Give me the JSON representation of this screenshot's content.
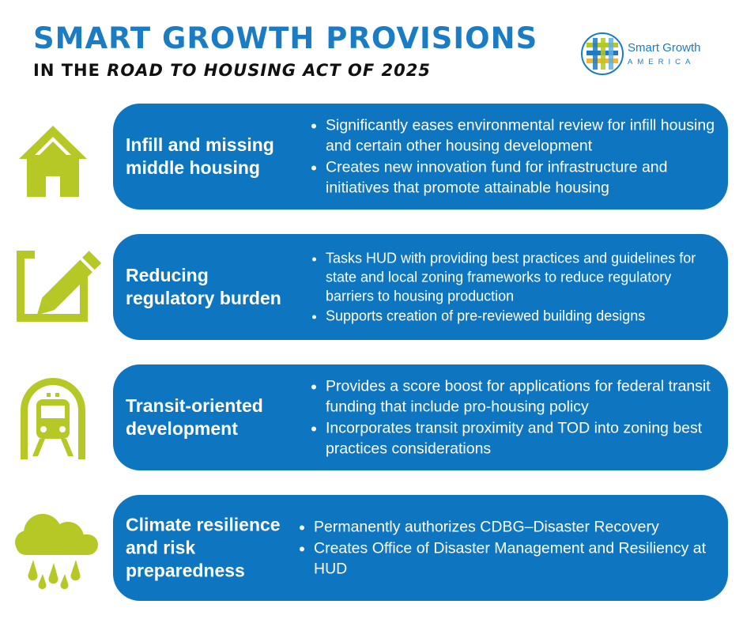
{
  "header": {
    "title": "SMART GROWTH PROVISIONS",
    "subtitle_prefix": "IN THE",
    "subtitle_italic": "ROAD TO HOUSING ACT OF 2025"
  },
  "logo": {
    "name": "Smart Growth",
    "sub": "AMERICA"
  },
  "colors": {
    "accent_blue": "#0e75c0",
    "icon_green": "#b5c825",
    "title_blue": "#1b7cc4"
  },
  "sections": [
    {
      "icon": "house-icon",
      "title": "Infill and missing middle housing",
      "bullets": [
        "Significantly eases environmental review for infill housing and certain other housing development",
        "Creates new innovation fund for infrastructure and initiatives that promote attainable housing"
      ]
    },
    {
      "icon": "pencil-checkbox-icon",
      "title": "Reducing regulatory burden",
      "bullets": [
        "Tasks HUD with providing best practices and guidelines for state and local zoning frameworks to reduce regulatory barriers to housing production",
        "Supports creation of pre-reviewed building designs"
      ]
    },
    {
      "icon": "train-icon",
      "title": "Transit-oriented development",
      "bullets": [
        "Provides a score boost for applications for federal transit funding that include pro-housing policy",
        "Incorporates transit proximity and TOD into zoning best practices considerations"
      ]
    },
    {
      "icon": "rain-cloud-icon",
      "title": "Climate resilience and risk preparedness",
      "bullets": [
        "Permanently authorizes CDBG–Disaster Recovery",
        "Creates Office of Disaster Management and Resiliency at HUD"
      ]
    }
  ]
}
